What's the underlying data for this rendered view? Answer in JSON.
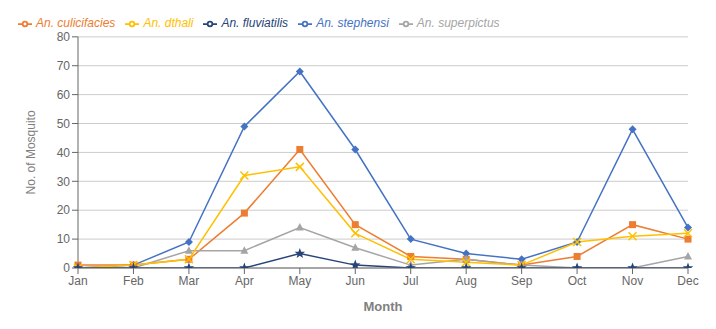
{
  "chart_data": {
    "type": "line",
    "categories": [
      "Jan",
      "Feb",
      "Mar",
      "Apr",
      "May",
      "Jun",
      "Jul",
      "Aug",
      "Sep",
      "Oct",
      "Nov",
      "Dec"
    ],
    "series": [
      {
        "name": "An. stephensi",
        "color": "#4472C4",
        "marker": "diamond",
        "values": [
          0,
          1,
          9,
          49,
          68,
          41,
          10,
          5,
          3,
          9,
          48,
          14
        ]
      },
      {
        "name": "An. culicifacies",
        "color": "#ED7D31",
        "marker": "square",
        "values": [
          1,
          1,
          3,
          19,
          41,
          15,
          4,
          3,
          1,
          4,
          15,
          10
        ]
      },
      {
        "name": "An. superpictus",
        "color": "#A5A5A5",
        "marker": "triangle",
        "values": [
          0,
          0,
          6,
          6,
          14,
          7,
          1,
          3,
          1,
          0,
          0,
          4
        ]
      },
      {
        "name": "An. dthali",
        "color": "#FFC000",
        "marker": "x",
        "values": [
          0,
          1,
          3,
          32,
          35,
          12,
          3,
          2,
          1,
          9,
          11,
          12
        ]
      },
      {
        "name": "An. fluviatilis",
        "color": "#264478",
        "marker": "star",
        "values": [
          0,
          0,
          0,
          0,
          5,
          1,
          0,
          0,
          0,
          0,
          0,
          0
        ]
      }
    ],
    "xlabel": "Month",
    "ylabel": "No. of Mosquito",
    "ylim": [
      0,
      80
    ],
    "yticks": [
      0,
      10,
      20,
      30,
      40,
      50,
      60,
      70,
      80
    ],
    "grid": true,
    "legend": "top"
  }
}
